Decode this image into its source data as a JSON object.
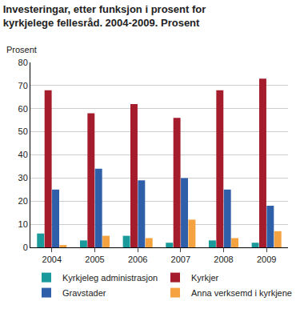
{
  "chart_data": {
    "type": "bar",
    "title": "Investeringar, etter funksjon i prosent for kyrkjelege fellesråd. 2004-2009. Prosent",
    "ylabel": "Prosent",
    "categories": [
      "2004",
      "2005",
      "2006",
      "2007",
      "2008",
      "2009"
    ],
    "series": [
      {
        "name": "Kyrkjeleg administrasjon",
        "color": "#1a9a9a",
        "values": [
          6,
          3,
          5,
          2,
          3,
          2
        ]
      },
      {
        "name": "Kyrkjer",
        "color": "#a51d2d",
        "values": [
          68,
          58,
          62,
          56,
          68,
          73
        ]
      },
      {
        "name": "Gravstader",
        "color": "#2f5fa8",
        "values": [
          25,
          34,
          29,
          30,
          25,
          18
        ]
      },
      {
        "name": "Anna verksemd i kyrkjene",
        "color": "#f4a340",
        "values": [
          1,
          5,
          4,
          12,
          4,
          7
        ]
      }
    ],
    "ylim": [
      0,
      80
    ],
    "yticks": [
      0,
      10,
      20,
      30,
      40,
      50,
      60,
      70,
      80
    ],
    "grid": true,
    "legend": "bottom"
  }
}
